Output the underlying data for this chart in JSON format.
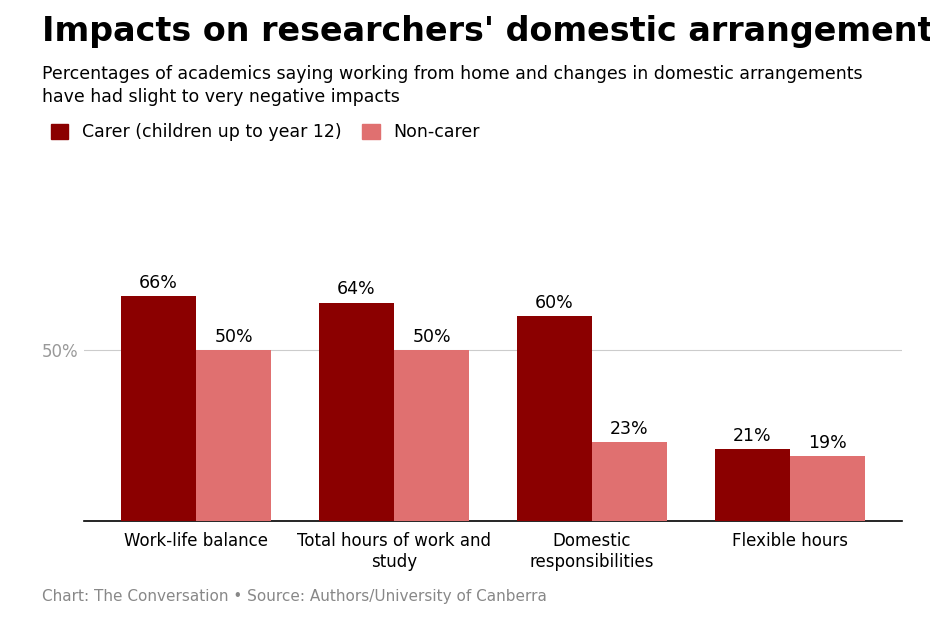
{
  "title": "Impacts on researchers' domestic arrangements",
  "subtitle_line1": "Percentages of academics saying working from home and changes in domestic arrangements",
  "subtitle_line2": "have had slight to very negative impacts",
  "legend": [
    "Carer (children up to year 12)",
    "Non-carer"
  ],
  "categories": [
    "Work-life balance",
    "Total hours of work and\nstudy",
    "Domestic\nresponsibilities",
    "Flexible hours"
  ],
  "carer_values": [
    66,
    64,
    60,
    21
  ],
  "noncarer_values": [
    50,
    50,
    23,
    19
  ],
  "carer_color": "#8B0000",
  "noncarer_color": "#E07070",
  "background_color": "#FFFFFF",
  "footnote": "Chart: The Conversation • Source: Authors/University of Canberra",
  "ylim": [
    0,
    80
  ],
  "ytick_label": "50%",
  "ytick_value": 50,
  "bar_width": 0.38,
  "title_fontsize": 24,
  "subtitle_fontsize": 12.5,
  "label_fontsize": 12,
  "annotation_fontsize": 12.5,
  "footnote_fontsize": 11,
  "legend_fontsize": 12.5
}
